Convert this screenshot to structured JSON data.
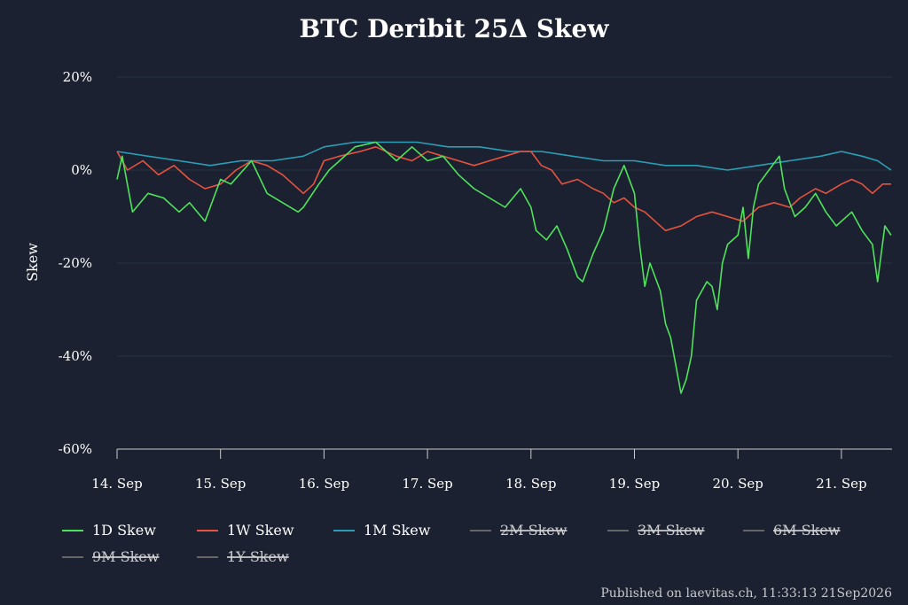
{
  "chart_data": {
    "type": "line",
    "title": "BTC Deribit 25Δ Skew",
    "xlabel": "",
    "ylabel": "Skew",
    "ylim": [
      -60,
      20
    ],
    "y_ticks": [
      20,
      0,
      -20,
      -40,
      -60
    ],
    "y_tick_labels": [
      "20%",
      "0%",
      "-20%",
      "-40%",
      "-60%"
    ],
    "xlim": [
      0,
      7.48
    ],
    "x_ticks": [
      0,
      1,
      2,
      3,
      4,
      5,
      6,
      7
    ],
    "x_tick_labels": [
      "14. Sep",
      "15. Sep",
      "16. Sep",
      "17. Sep",
      "18. Sep",
      "19. Sep",
      "20. Sep",
      "21. Sep"
    ],
    "x_unit": "days since 14 Sep 00:00",
    "legend_position": "bottom-left",
    "series": [
      {
        "name": "1D Skew",
        "color": "#4ee35a",
        "visible": true,
        "points": [
          [
            0,
            -2
          ],
          [
            0.05,
            3
          ],
          [
            0.15,
            -9
          ],
          [
            0.3,
            -5
          ],
          [
            0.45,
            -6
          ],
          [
            0.6,
            -9
          ],
          [
            0.7,
            -7
          ],
          [
            0.85,
            -11
          ],
          [
            1.0,
            -2
          ],
          [
            1.1,
            -3
          ],
          [
            1.3,
            2
          ],
          [
            1.45,
            -5
          ],
          [
            1.6,
            -7
          ],
          [
            1.75,
            -9
          ],
          [
            1.8,
            -8
          ],
          [
            1.95,
            -3
          ],
          [
            2.05,
            0
          ],
          [
            2.15,
            2
          ],
          [
            2.3,
            5
          ],
          [
            2.5,
            6
          ],
          [
            2.7,
            2
          ],
          [
            2.85,
            5
          ],
          [
            3.0,
            2
          ],
          [
            3.15,
            3
          ],
          [
            3.3,
            -1
          ],
          [
            3.45,
            -4
          ],
          [
            3.6,
            -6
          ],
          [
            3.75,
            -8
          ],
          [
            3.9,
            -4
          ],
          [
            4.0,
            -8
          ],
          [
            4.05,
            -13
          ],
          [
            4.15,
            -15
          ],
          [
            4.25,
            -12
          ],
          [
            4.35,
            -17
          ],
          [
            4.45,
            -23
          ],
          [
            4.5,
            -24
          ],
          [
            4.6,
            -18
          ],
          [
            4.7,
            -13
          ],
          [
            4.8,
            -4
          ],
          [
            4.9,
            1
          ],
          [
            5.0,
            -5
          ],
          [
            5.05,
            -16
          ],
          [
            5.1,
            -25
          ],
          [
            5.15,
            -20
          ],
          [
            5.25,
            -26
          ],
          [
            5.3,
            -33
          ],
          [
            5.35,
            -36
          ],
          [
            5.4,
            -42
          ],
          [
            5.45,
            -48
          ],
          [
            5.5,
            -45
          ],
          [
            5.55,
            -40
          ],
          [
            5.6,
            -28
          ],
          [
            5.65,
            -26
          ],
          [
            5.7,
            -24
          ],
          [
            5.75,
            -25
          ],
          [
            5.8,
            -30
          ],
          [
            5.85,
            -20
          ],
          [
            5.9,
            -16
          ],
          [
            6.0,
            -14
          ],
          [
            6.05,
            -8
          ],
          [
            6.1,
            -19
          ],
          [
            6.15,
            -8
          ],
          [
            6.2,
            -3
          ],
          [
            6.3,
            0
          ],
          [
            6.4,
            3
          ],
          [
            6.45,
            -4
          ],
          [
            6.55,
            -10
          ],
          [
            6.65,
            -8
          ],
          [
            6.75,
            -5
          ],
          [
            6.85,
            -9
          ],
          [
            6.95,
            -12
          ],
          [
            7.1,
            -9
          ],
          [
            7.2,
            -13
          ],
          [
            7.3,
            -16
          ],
          [
            7.35,
            -24
          ],
          [
            7.42,
            -12
          ],
          [
            7.48,
            -14
          ]
        ]
      },
      {
        "name": "1W Skew",
        "color": "#e8533f",
        "visible": true,
        "points": [
          [
            0,
            4
          ],
          [
            0.1,
            0
          ],
          [
            0.25,
            2
          ],
          [
            0.4,
            -1
          ],
          [
            0.55,
            1
          ],
          [
            0.7,
            -2
          ],
          [
            0.85,
            -4
          ],
          [
            1.0,
            -3
          ],
          [
            1.15,
            0
          ],
          [
            1.3,
            2
          ],
          [
            1.45,
            1
          ],
          [
            1.6,
            -1
          ],
          [
            1.7,
            -3
          ],
          [
            1.8,
            -5
          ],
          [
            1.9,
            -3
          ],
          [
            2.0,
            2
          ],
          [
            2.15,
            3
          ],
          [
            2.35,
            4
          ],
          [
            2.5,
            5
          ],
          [
            2.7,
            3
          ],
          [
            2.85,
            2
          ],
          [
            3.0,
            4
          ],
          [
            3.15,
            3
          ],
          [
            3.3,
            2
          ],
          [
            3.45,
            1
          ],
          [
            3.6,
            2
          ],
          [
            3.75,
            3
          ],
          [
            3.9,
            4
          ],
          [
            4.0,
            4
          ],
          [
            4.1,
            1
          ],
          [
            4.2,
            0
          ],
          [
            4.3,
            -3
          ],
          [
            4.45,
            -2
          ],
          [
            4.6,
            -4
          ],
          [
            4.7,
            -5
          ],
          [
            4.8,
            -7
          ],
          [
            4.9,
            -6
          ],
          [
            5.0,
            -8
          ],
          [
            5.1,
            -9
          ],
          [
            5.2,
            -11
          ],
          [
            5.3,
            -13
          ],
          [
            5.45,
            -12
          ],
          [
            5.6,
            -10
          ],
          [
            5.75,
            -9
          ],
          [
            5.9,
            -10
          ],
          [
            6.05,
            -11
          ],
          [
            6.2,
            -8
          ],
          [
            6.35,
            -7
          ],
          [
            6.5,
            -8
          ],
          [
            6.6,
            -6
          ],
          [
            6.75,
            -4
          ],
          [
            6.85,
            -5
          ],
          [
            7.0,
            -3
          ],
          [
            7.1,
            -2
          ],
          [
            7.2,
            -3
          ],
          [
            7.3,
            -5
          ],
          [
            7.4,
            -3
          ],
          [
            7.48,
            -3
          ]
        ]
      },
      {
        "name": "1M Skew",
        "color": "#2b9fb5",
        "visible": true,
        "points": [
          [
            0,
            4
          ],
          [
            0.3,
            3
          ],
          [
            0.6,
            2
          ],
          [
            0.9,
            1
          ],
          [
            1.2,
            2
          ],
          [
            1.5,
            2
          ],
          [
            1.8,
            3
          ],
          [
            2.0,
            5
          ],
          [
            2.3,
            6
          ],
          [
            2.6,
            6
          ],
          [
            2.9,
            6
          ],
          [
            3.2,
            5
          ],
          [
            3.5,
            5
          ],
          [
            3.8,
            4
          ],
          [
            4.1,
            4
          ],
          [
            4.4,
            3
          ],
          [
            4.7,
            2
          ],
          [
            5.0,
            2
          ],
          [
            5.3,
            1
          ],
          [
            5.6,
            1
          ],
          [
            5.9,
            0
          ],
          [
            6.2,
            1
          ],
          [
            6.5,
            2
          ],
          [
            6.8,
            3
          ],
          [
            7.0,
            4
          ],
          [
            7.2,
            3
          ],
          [
            7.35,
            2
          ],
          [
            7.48,
            0
          ]
        ]
      },
      {
        "name": "2M Skew",
        "color": "#666666",
        "visible": false,
        "points": []
      },
      {
        "name": "3M Skew",
        "color": "#666666",
        "visible": false,
        "points": []
      },
      {
        "name": "6M Skew",
        "color": "#666666",
        "visible": false,
        "points": []
      },
      {
        "name": "9M Skew",
        "color": "#666666",
        "visible": false,
        "points": []
      },
      {
        "name": "1Y Skew",
        "color": "#666666",
        "visible": false,
        "points": []
      }
    ]
  },
  "footer": {
    "credit": "Published on laevitas.ch, 11:33:13 21Sep2026"
  },
  "colors": {
    "background": "#1b2130",
    "grid": "#24323f",
    "axis": "#cccccc"
  }
}
